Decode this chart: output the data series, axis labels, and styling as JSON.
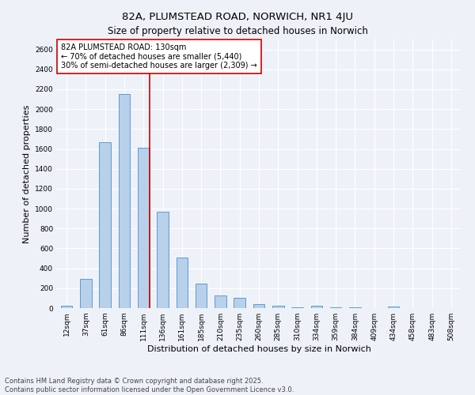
{
  "title": "82A, PLUMSTEAD ROAD, NORWICH, NR1 4JU",
  "subtitle": "Size of property relative to detached houses in Norwich",
  "xlabel": "Distribution of detached houses by size in Norwich",
  "ylabel": "Number of detached properties",
  "categories": [
    "12sqm",
    "37sqm",
    "61sqm",
    "86sqm",
    "111sqm",
    "136sqm",
    "161sqm",
    "185sqm",
    "210sqm",
    "235sqm",
    "260sqm",
    "285sqm",
    "310sqm",
    "334sqm",
    "359sqm",
    "384sqm",
    "409sqm",
    "434sqm",
    "458sqm",
    "483sqm",
    "508sqm"
  ],
  "values": [
    20,
    295,
    1670,
    2150,
    1610,
    970,
    510,
    245,
    125,
    100,
    40,
    20,
    10,
    25,
    5,
    5,
    0,
    15,
    0,
    0,
    0
  ],
  "bar_color": "#b8d0ea",
  "bar_edge_color": "#5b9bd5",
  "vline_x_index": 4,
  "vline_color": "#cc0000",
  "annotation_text": "82A PLUMSTEAD ROAD: 130sqm\n← 70% of detached houses are smaller (5,440)\n30% of semi-detached houses are larger (2,309) →",
  "annotation_box_color": "#ffffff",
  "annotation_box_edge": "#cc0000",
  "ylim": [
    0,
    2700
  ],
  "yticks": [
    0,
    200,
    400,
    600,
    800,
    1000,
    1200,
    1400,
    1600,
    1800,
    2000,
    2200,
    2400,
    2600
  ],
  "bg_color": "#eef2f8",
  "grid_color": "#ffffff",
  "footer": "Contains HM Land Registry data © Crown copyright and database right 2025.\nContains public sector information licensed under the Open Government Licence v3.0.",
  "title_fontsize": 9.5,
  "subtitle_fontsize": 8.5,
  "label_fontsize": 8,
  "tick_fontsize": 6.5,
  "annotation_fontsize": 7,
  "footer_fontsize": 6
}
